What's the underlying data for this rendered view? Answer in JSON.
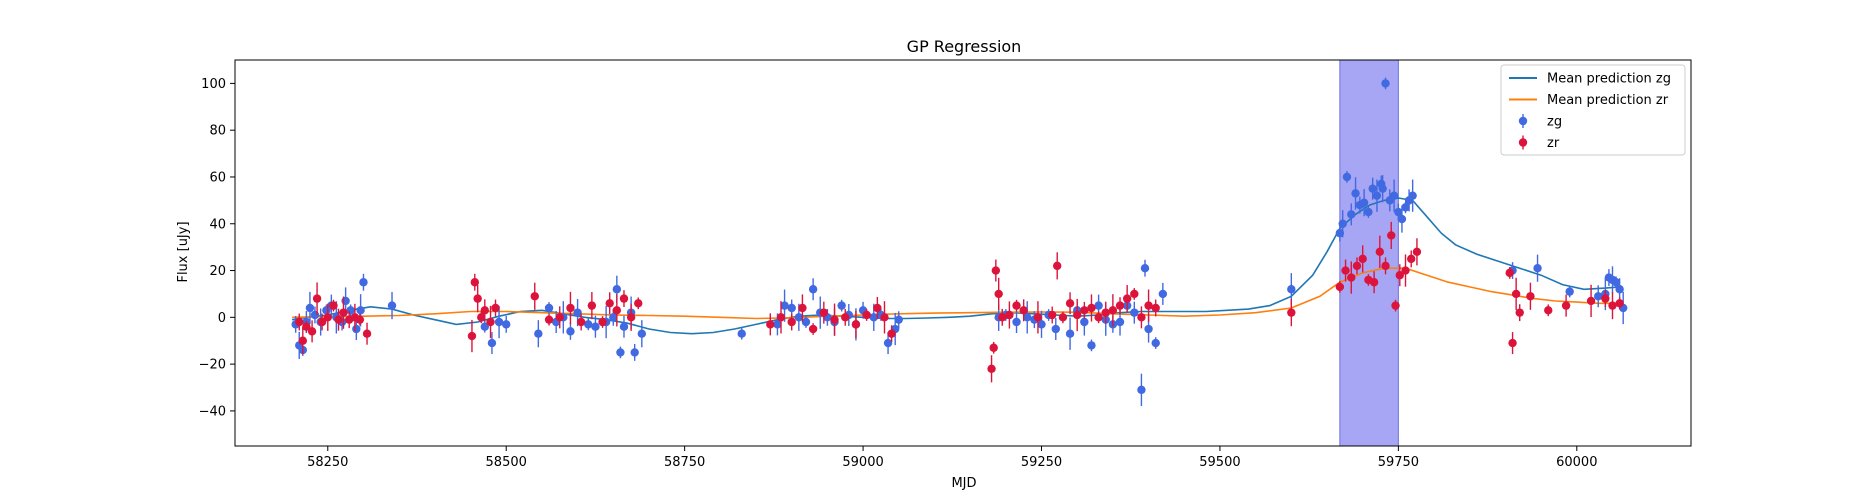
{
  "chart_data": {
    "type": "scatter",
    "title": "GP Regression",
    "xlabel": "MJD",
    "ylabel": "Flux [uJy]",
    "xlim": [
      58120,
      60160
    ],
    "ylim": [
      -55,
      110
    ],
    "xticks": [
      58250,
      58500,
      58750,
      59000,
      59250,
      59500,
      59750,
      60000
    ],
    "yticks": [
      -40,
      -20,
      0,
      20,
      40,
      60,
      80,
      100
    ],
    "grid": false,
    "legend_position": "top-right",
    "highlight_span": {
      "x": [
        59668,
        59750
      ],
      "color": "#a6a6f5"
    },
    "colors": {
      "zg_line": "#1f77b4",
      "zr_line": "#ff7f0e",
      "zg_points": "#4169e1",
      "zr_points": "#dc143c"
    },
    "lines": [
      {
        "name": "Mean prediction zg",
        "color": "#1f77b4",
        "x": [
          58200,
          58220,
          58250,
          58280,
          58310,
          58340,
          58370,
          58400,
          58430,
          58460,
          58490,
          58520,
          58550,
          58580,
          58610,
          58640,
          58670,
          58700,
          58730,
          58760,
          58790,
          58820,
          58850,
          58880,
          58910,
          58940,
          58970,
          59000,
          59030,
          59060,
          59090,
          59120,
          59150,
          59180,
          59210,
          59240,
          59270,
          59300,
          59330,
          59360,
          59390,
          59420,
          59450,
          59480,
          59510,
          59540,
          59570,
          59600,
          59630,
          59650,
          59668,
          59690,
          59710,
          59730,
          59750,
          59770,
          59790,
          59810,
          59830,
          59860,
          59890,
          59920,
          59950,
          59980,
          60010,
          60040,
          60060
        ],
        "y": [
          -1,
          0,
          1,
          3,
          4.5,
          3.5,
          1,
          -1,
          -3,
          -2,
          0.5,
          2.5,
          3,
          1.5,
          0,
          -1,
          -2.5,
          -5,
          -6.5,
          -7,
          -6.5,
          -5,
          -3,
          -1,
          0.5,
          1,
          0.5,
          0,
          -0.5,
          -0.5,
          -0.3,
          0,
          0.5,
          1.5,
          2,
          1.5,
          1,
          0.5,
          1,
          2,
          2.5,
          2.5,
          2.5,
          2.5,
          3,
          3.5,
          5,
          9,
          18,
          28,
          38,
          44,
          48,
          50,
          51,
          50,
          43,
          36,
          31,
          27,
          24,
          21,
          18,
          14,
          12,
          12.5,
          13
        ]
      },
      {
        "name": "Mean prediction zr",
        "color": "#ff7f0e",
        "x": [
          58200,
          58250,
          58300,
          58350,
          58400,
          58450,
          58500,
          58550,
          58600,
          58650,
          58700,
          58750,
          58800,
          58850,
          58900,
          58950,
          59000,
          59050,
          59100,
          59150,
          59200,
          59250,
          59300,
          59350,
          59400,
          59450,
          59500,
          59550,
          59600,
          59640,
          59668,
          59700,
          59730,
          59760,
          59790,
          59820,
          59850,
          59880,
          59910,
          59940,
          59970,
          60000,
          60030,
          60060
        ],
        "y": [
          0,
          0.3,
          0.5,
          0.8,
          1.5,
          2.5,
          2.5,
          2,
          1.5,
          1,
          0.8,
          0.5,
          0,
          -0.5,
          -0.2,
          0.5,
          1,
          1.5,
          1.8,
          2,
          2.2,
          2.3,
          2.2,
          1.5,
          1,
          0.5,
          1,
          2,
          4,
          9,
          15,
          19,
          21,
          21,
          18,
          15,
          13,
          11,
          9.5,
          8,
          7,
          6.5,
          6,
          6
        ]
      }
    ],
    "series": [
      {
        "name": "zg",
        "color": "#4169e1",
        "x": [
          58205,
          58210,
          58215,
          58220,
          58225,
          58232,
          58240,
          58248,
          58255,
          58262,
          58270,
          58275,
          58282,
          58290,
          58296,
          58300,
          58340,
          58470,
          58480,
          58490,
          58500,
          58545,
          58560,
          58570,
          58580,
          58590,
          58600,
          58615,
          58625,
          58640,
          58650,
          58655,
          58660,
          58665,
          58675,
          58680,
          58690,
          58830,
          58880,
          58890,
          58900,
          58910,
          58920,
          58930,
          58940,
          58950,
          58960,
          58970,
          58980,
          58990,
          59000,
          59015,
          59025,
          59035,
          59045,
          59050,
          59190,
          59200,
          59215,
          59230,
          59240,
          59250,
          59260,
          59270,
          59290,
          59300,
          59310,
          59320,
          59330,
          59340,
          59350,
          59360,
          59370,
          59380,
          59390,
          59395,
          59400,
          59410,
          59420,
          59600,
          59668,
          59672,
          59678,
          59684,
          59690,
          59696,
          59702,
          59708,
          59714,
          59720,
          59726,
          59728,
          59732,
          59738,
          59744,
          59750,
          59755,
          59760,
          59765,
          59770,
          59910,
          59945,
          59990,
          60030,
          60040,
          60045,
          60050,
          60055,
          60060,
          60065
        ],
        "y": [
          -3,
          -12,
          -14,
          -2,
          4,
          1,
          -2,
          3,
          5,
          0,
          -2,
          7,
          3,
          -5,
          3,
          15,
          5,
          -4,
          -11,
          -2,
          -3,
          -7,
          4,
          -2,
          0,
          -6,
          2,
          -3,
          -4,
          -2,
          0,
          12,
          -15,
          -4,
          2,
          -15,
          -7,
          -7,
          -3,
          5,
          4,
          0,
          -2,
          12,
          2,
          0,
          -2,
          5,
          1,
          -3,
          3,
          0,
          1,
          -11,
          -5,
          -1,
          0,
          1,
          -2,
          0,
          -1,
          -3,
          1,
          -5,
          -7,
          3,
          -2,
          -12,
          5,
          -1,
          -3,
          -2,
          5,
          2,
          -31,
          21,
          -5,
          -11,
          10,
          12,
          36,
          40,
          60,
          44,
          53,
          48,
          49,
          45,
          55,
          52,
          57,
          55,
          100,
          50,
          52,
          45,
          42,
          47,
          50,
          52,
          20,
          21,
          11,
          9,
          10,
          17,
          16,
          15,
          12,
          4
        ]
      },
      {
        "name": "zr",
        "color": "#dc143c",
        "x": [
          58210,
          58215,
          58220,
          58228,
          58235,
          58242,
          58250,
          58258,
          58265,
          58272,
          58280,
          58288,
          58295,
          58305,
          58452,
          58456,
          58460,
          58465,
          58470,
          58478,
          58485,
          58540,
          58560,
          58575,
          58590,
          58605,
          58620,
          58635,
          58645,
          58655,
          58665,
          58675,
          58685,
          58870,
          58885,
          58900,
          58915,
          58930,
          58945,
          58960,
          58975,
          58990,
          59005,
          59020,
          59030,
          59040,
          59180,
          59183,
          59186,
          59190,
          59195,
          59205,
          59215,
          59225,
          59245,
          59265,
          59272,
          59280,
          59290,
          59300,
          59310,
          59320,
          59330,
          59340,
          59350,
          59360,
          59370,
          59380,
          59390,
          59400,
          59410,
          59600,
          59668,
          59676,
          59684,
          59692,
          59700,
          59708,
          59716,
          59724,
          59732,
          59740,
          59746,
          59752,
          59760,
          59768,
          59776,
          59906,
          59910,
          59915,
          59920,
          59935,
          59960,
          59985,
          60020,
          60040,
          60050,
          60060
        ],
        "y": [
          -2,
          -10,
          -4,
          -6,
          8,
          -2,
          0,
          5,
          -1,
          2,
          -1,
          0,
          -1,
          -7,
          -8,
          15,
          8,
          0,
          3,
          -2,
          4,
          9,
          -1,
          0,
          4,
          -2,
          5,
          -2,
          6,
          3,
          8,
          0,
          6,
          -3,
          0,
          -2,
          4,
          -5,
          2,
          -1,
          0,
          -3,
          1,
          4,
          0,
          -7,
          -22,
          -13,
          20,
          10,
          0,
          1,
          5,
          3,
          0,
          1,
          22,
          0,
          6,
          1,
          3,
          4,
          0,
          2,
          3,
          5,
          8,
          10,
          0,
          5,
          4,
          2,
          13,
          20,
          17,
          22,
          25,
          16,
          15,
          28,
          22,
          35,
          5,
          18,
          20,
          25,
          28,
          19,
          -11,
          10,
          2,
          9,
          3,
          5,
          7,
          8,
          5,
          6
        ]
      }
    ],
    "legend": [
      {
        "label": "Mean prediction zg",
        "kind": "line",
        "color": "#1f77b4"
      },
      {
        "label": "Mean prediction zr",
        "kind": "line",
        "color": "#ff7f0e"
      },
      {
        "label": "zg",
        "kind": "errorpoint",
        "color": "#4169e1"
      },
      {
        "label": "zr",
        "kind": "errorpoint",
        "color": "#dc143c"
      }
    ]
  }
}
